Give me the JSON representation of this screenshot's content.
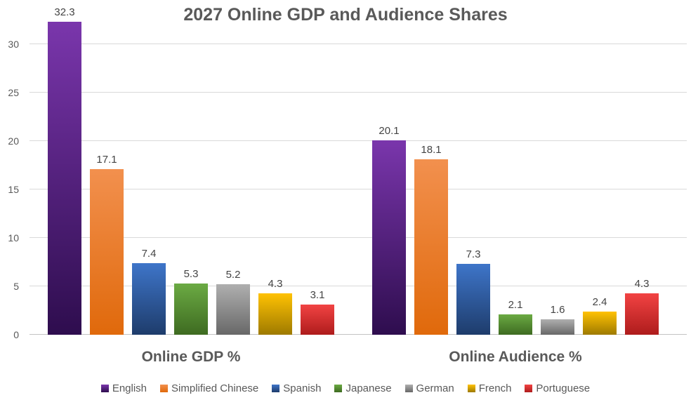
{
  "title": "2027 Online GDP and Audience Shares",
  "chart_data": {
    "type": "bar",
    "title": "2027 Online GDP and Audience Shares",
    "categories": [
      "Online GDP %",
      "Online Audience %"
    ],
    "series": [
      {
        "name": "English",
        "values": [
          32.3,
          20.1
        ],
        "color_top": "#7a36ac",
        "color_bottom": "#2e0d4e"
      },
      {
        "name": "Simplified Chinese",
        "values": [
          17.1,
          18.1
        ],
        "color_top": "#f2904e",
        "color_bottom": "#e0690b"
      },
      {
        "name": "Spanish",
        "values": [
          7.4,
          7.3
        ],
        "color_top": "#3e75c9",
        "color_bottom": "#1e3c6b"
      },
      {
        "name": "Japanese",
        "values": [
          5.3,
          2.1
        ],
        "color_top": "#6baa43",
        "color_bottom": "#3e6b21"
      },
      {
        "name": "German",
        "values": [
          5.2,
          1.6
        ],
        "color_top": "#afafaf",
        "color_bottom": "#686868"
      },
      {
        "name": "French",
        "values": [
          4.3,
          2.4
        ],
        "color_top": "#ffc203",
        "color_bottom": "#9e7a00"
      },
      {
        "name": "Portuguese",
        "values": [
          3.1,
          4.3
        ],
        "color_top": "#f24343",
        "color_bottom": "#ae1c1c"
      }
    ],
    "data_labels": [
      "32.3",
      "17.1",
      "7.4",
      "5.3",
      "5.2",
      "4.3",
      "3.1",
      "20.1",
      "18.1",
      "7.3",
      "2.1",
      "1.6",
      "2.4",
      "4.3"
    ],
    "y_axis": {
      "min": 0,
      "max": 33.5,
      "ticks": [
        0,
        5,
        10,
        15,
        20,
        25,
        30
      ]
    },
    "grid": true,
    "legend_position": "bottom",
    "text_color": "#595959",
    "value_label_color": "#444444",
    "gridline_color": "#d9d9d9"
  }
}
